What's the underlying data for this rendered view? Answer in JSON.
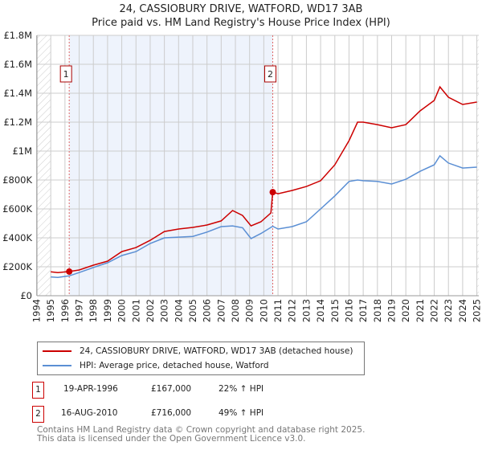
{
  "chart_data": {
    "type": "line",
    "title": "24, CASSIOBURY DRIVE, WATFORD, WD17 3AB",
    "subtitle": "Price paid vs. HM Land Registry's House Price Index (HPI)",
    "xlim": [
      1994,
      2025
    ],
    "ylim": [
      0,
      1800000
    ],
    "x_ticks": [
      "1994",
      "1995",
      "1996",
      "1997",
      "1998",
      "1999",
      "2000",
      "2001",
      "2002",
      "2003",
      "2004",
      "2005",
      "2006",
      "2007",
      "2008",
      "2009",
      "2010",
      "2011",
      "2012",
      "2013",
      "2014",
      "2015",
      "2016",
      "2017",
      "2018",
      "2019",
      "2020",
      "2021",
      "2022",
      "2023",
      "2024",
      "2025"
    ],
    "y_ticks": [
      {
        "value": 0,
        "label": "£0"
      },
      {
        "value": 200000,
        "label": "£200K"
      },
      {
        "value": 400000,
        "label": "£400K"
      },
      {
        "value": 600000,
        "label": "£600K"
      },
      {
        "value": 800000,
        "label": "£800K"
      },
      {
        "value": 1000000,
        "label": "£1M"
      },
      {
        "value": 1200000,
        "label": "£1.2M"
      },
      {
        "value": 1400000,
        "label": "£1.4M"
      },
      {
        "value": 1600000,
        "label": "£1.6M"
      },
      {
        "value": 1800000,
        "label": "£1.8M"
      }
    ],
    "grid": true,
    "series": [
      {
        "name": "24, CASSIOBURY DRIVE, WATFORD, WD17 3AB (detached house)",
        "color": "#cc0000",
        "x": [
          1995,
          1995.5,
          1996.3,
          1997,
          1998,
          1999,
          2000,
          2001,
          2002,
          2003,
          2004,
          2005,
          2006,
          2007,
          2007.8,
          2008.5,
          2009.1,
          2009.8,
          2010.5,
          2010.63,
          2011,
          2012,
          2013,
          2014,
          2015,
          2016,
          2016.6,
          2017,
          2018,
          2019,
          2020,
          2021,
          2022,
          2022.4,
          2023,
          2024,
          2025
        ],
        "y": [
          165000,
          160000,
          167000,
          178000,
          211000,
          239000,
          305000,
          333000,
          383000,
          444000,
          461000,
          472000,
          489000,
          517000,
          589000,
          555000,
          483000,
          511000,
          572000,
          716000,
          705000,
          728000,
          755000,
          795000,
          905000,
          1072000,
          1200000,
          1200000,
          1183000,
          1161000,
          1183000,
          1278000,
          1350000,
          1444000,
          1372000,
          1322000,
          1339000
        ]
      },
      {
        "name": "HPI: Average price, detached house, Watford",
        "color": "#5b8fd4",
        "x": [
          1995,
          1995.5,
          1996.3,
          1997,
          1998,
          1999,
          2000,
          2001,
          2002,
          2003,
          2004,
          2005,
          2006,
          2007,
          2007.8,
          2008.5,
          2009.1,
          2009.8,
          2010.5,
          2010.63,
          2011,
          2012,
          2013,
          2014,
          2015,
          2016,
          2016.6,
          2017,
          2018,
          2019,
          2020,
          2021,
          2022,
          2022.4,
          2023,
          2024,
          2025
        ],
        "y": [
          130000,
          126000,
          137000,
          160000,
          195000,
          228000,
          278000,
          305000,
          361000,
          400000,
          405000,
          410000,
          440000,
          478000,
          483000,
          470000,
          395000,
          430000,
          472000,
          480000,
          461000,
          478000,
          511000,
          600000,
          690000,
          790000,
          800000,
          795000,
          790000,
          772000,
          805000,
          860000,
          905000,
          967000,
          917000,
          883000,
          889000
        ]
      }
    ],
    "sales": [
      {
        "num": "1",
        "x": 1996.3,
        "date": "19-APR-1996",
        "price": "£167,000",
        "value": 167000,
        "hpi": "22% ↑ HPI"
      },
      {
        "num": "2",
        "x": 2010.63,
        "date": "16-AUG-2010",
        "price": "£716,000",
        "value": 716000,
        "hpi": "49% ↑ HPI"
      }
    ],
    "legend_placement": "below"
  },
  "footer": {
    "line1": "Contains HM Land Registry data © Crown copyright and database right 2025.",
    "line2": "This data is licensed under the Open Government Licence v3.0."
  }
}
